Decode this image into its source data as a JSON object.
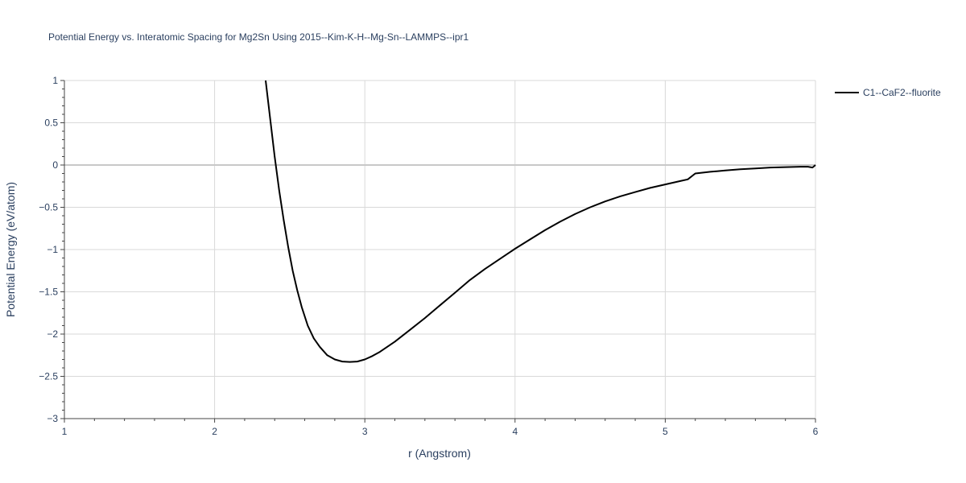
{
  "chart_data": {
    "type": "line",
    "title": "Potential Energy vs. Interatomic Spacing for Mg2Sn Using 2015--Kim-K-H--Mg-Sn--LAMMPS--ipr1",
    "xlabel": "r (Angstrom)",
    "ylabel": "Potential Energy (eV/atom)",
    "xlim": [
      1,
      6
    ],
    "ylim": [
      -3,
      1
    ],
    "xticks": [
      1,
      2,
      3,
      4,
      5,
      6
    ],
    "xtick_labels": [
      "1",
      "2",
      "3",
      "4",
      "5",
      "6"
    ],
    "yticks": [
      1,
      0.5,
      0,
      -0.5,
      -1,
      -1.5,
      -2,
      -2.5,
      -3
    ],
    "ytick_labels": [
      "1",
      "0.5",
      "0",
      "−0.5",
      "−1",
      "−1.5",
      "−2",
      "−2.5",
      "−3"
    ],
    "grid": true,
    "legend_position": "top-right",
    "series": [
      {
        "name": "C1--CaF2--fluorite",
        "color": "#000000",
        "x": [
          2.34,
          2.37,
          2.4,
          2.43,
          2.46,
          2.49,
          2.52,
          2.55,
          2.58,
          2.62,
          2.66,
          2.7,
          2.75,
          2.8,
          2.85,
          2.9,
          2.95,
          3.0,
          3.05,
          3.1,
          3.2,
          3.3,
          3.4,
          3.5,
          3.6,
          3.7,
          3.8,
          3.9,
          4.0,
          4.1,
          4.2,
          4.3,
          4.4,
          4.5,
          4.6,
          4.7,
          4.8,
          4.9,
          5.0,
          5.1,
          5.15,
          5.2,
          5.3,
          5.4,
          5.5,
          5.6,
          5.7,
          5.8,
          5.9,
          5.95,
          5.98,
          6.0
        ],
        "y": [
          1.0,
          0.55,
          0.1,
          -0.3,
          -0.65,
          -0.97,
          -1.25,
          -1.48,
          -1.68,
          -1.9,
          -2.05,
          -2.15,
          -2.25,
          -2.3,
          -2.325,
          -2.33,
          -2.325,
          -2.3,
          -2.26,
          -2.21,
          -2.09,
          -1.95,
          -1.81,
          -1.66,
          -1.51,
          -1.36,
          -1.23,
          -1.11,
          -0.99,
          -0.88,
          -0.77,
          -0.67,
          -0.58,
          -0.5,
          -0.43,
          -0.37,
          -0.32,
          -0.27,
          -0.23,
          -0.19,
          -0.17,
          -0.1,
          -0.08,
          -0.065,
          -0.05,
          -0.04,
          -0.03,
          -0.025,
          -0.02,
          -0.02,
          -0.03,
          0.0
        ]
      }
    ]
  }
}
